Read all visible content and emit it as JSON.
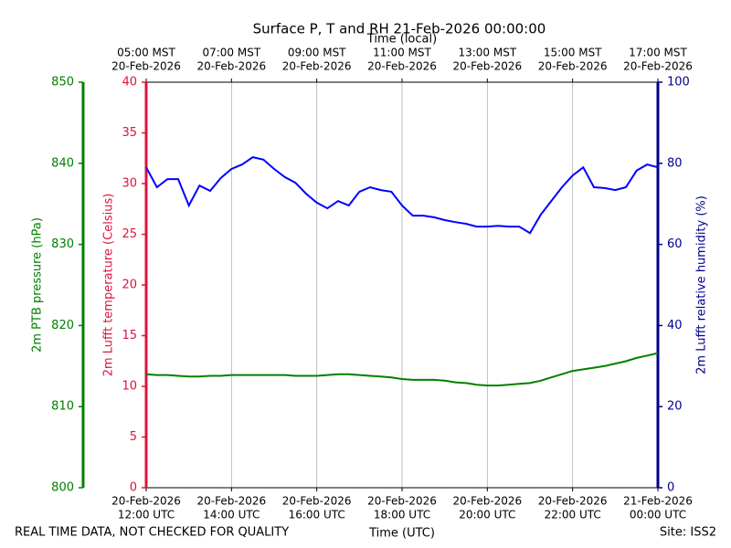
{
  "chart_data": {
    "type": "line",
    "title": "Surface P, T and RH 21-Feb-2026 00:00:00",
    "xlabel": "Time (UTC)",
    "x2label": "Time (local)",
    "footer_left": "REAL TIME DATA, NOT CHECKED FOR QUALITY",
    "footer_right": "Site: ISS2",
    "xlim": [
      "2026-02-20T12:00",
      "2026-02-21T00:00"
    ],
    "xticks": [
      {
        "value": "2026-02-20T12:00",
        "label": [
          "20-Feb-2026",
          "12:00 UTC"
        ]
      },
      {
        "value": "2026-02-20T14:00",
        "label": [
          "20-Feb-2026",
          "14:00 UTC"
        ]
      },
      {
        "value": "2026-02-20T16:00",
        "label": [
          "20-Feb-2026",
          "16:00 UTC"
        ]
      },
      {
        "value": "2026-02-20T18:00",
        "label": [
          "20-Feb-2026",
          "18:00 UTC"
        ]
      },
      {
        "value": "2026-02-20T20:00",
        "label": [
          "20-Feb-2026",
          "20:00 UTC"
        ]
      },
      {
        "value": "2026-02-20T22:00",
        "label": [
          "20-Feb-2026",
          "22:00 UTC"
        ]
      },
      {
        "value": "2026-02-21T00:00",
        "label": [
          "21-Feb-2026",
          "00:00 UTC"
        ]
      }
    ],
    "x2ticks": [
      {
        "value": "2026-02-20T12:00",
        "label": [
          "05:00 MST",
          "20-Feb-2026"
        ]
      },
      {
        "value": "2026-02-20T14:00",
        "label": [
          "07:00 MST",
          "20-Feb-2026"
        ]
      },
      {
        "value": "2026-02-20T16:00",
        "label": [
          "09:00 MST",
          "20-Feb-2026"
        ]
      },
      {
        "value": "2026-02-20T18:00",
        "label": [
          "11:00 MST",
          "20-Feb-2026"
        ]
      },
      {
        "value": "2026-02-20T20:00",
        "label": [
          "13:00 MST",
          "20-Feb-2026"
        ]
      },
      {
        "value": "2026-02-20T22:00",
        "label": [
          "15:00 MST",
          "20-Feb-2026"
        ]
      },
      {
        "value": "2026-02-21T00:00",
        "label": [
          "17:00 MST",
          "20-Feb-2026"
        ]
      }
    ],
    "grid": true,
    "ylabel": "2m PTB pressure (hPa)",
    "ycolor": "#008000",
    "ylim": [
      800,
      850
    ],
    "yticks": [
      800,
      810,
      820,
      830,
      840,
      850
    ],
    "y2label": "2m Lufft temperature (Celsius)",
    "y2color": "#dc143c",
    "y2lim": [
      0,
      40
    ],
    "y2ticks": [
      0,
      5,
      10,
      15,
      20,
      25,
      30,
      35,
      40
    ],
    "y3label": "2m Lufft relative humidity (%)",
    "y3color": "#00008b",
    "y3lim": [
      0,
      100
    ],
    "y3ticks": [
      0,
      20,
      40,
      60,
      80,
      100
    ],
    "x": [
      "2026-02-20T12:00",
      "2026-02-20T12:15",
      "2026-02-20T12:30",
      "2026-02-20T12:45",
      "2026-02-20T13:00",
      "2026-02-20T13:15",
      "2026-02-20T13:30",
      "2026-02-20T13:45",
      "2026-02-20T14:00",
      "2026-02-20T14:15",
      "2026-02-20T14:30",
      "2026-02-20T14:45",
      "2026-02-20T15:00",
      "2026-02-20T15:15",
      "2026-02-20T15:30",
      "2026-02-20T15:45",
      "2026-02-20T16:00",
      "2026-02-20T16:15",
      "2026-02-20T16:30",
      "2026-02-20T16:45",
      "2026-02-20T17:00",
      "2026-02-20T17:15",
      "2026-02-20T17:30",
      "2026-02-20T17:45",
      "2026-02-20T18:00",
      "2026-02-20T18:15",
      "2026-02-20T18:30",
      "2026-02-20T18:45",
      "2026-02-20T19:00",
      "2026-02-20T19:15",
      "2026-02-20T19:30",
      "2026-02-20T19:45",
      "2026-02-20T20:00",
      "2026-02-20T20:15",
      "2026-02-20T20:30",
      "2026-02-20T20:45",
      "2026-02-20T21:00",
      "2026-02-20T21:15",
      "2026-02-20T21:30",
      "2026-02-20T21:45",
      "2026-02-20T22:00",
      "2026-02-20T22:15",
      "2026-02-20T22:30",
      "2026-02-20T22:45",
      "2026-02-20T23:00",
      "2026-02-20T23:15",
      "2026-02-20T23:30",
      "2026-02-20T23:45",
      "2026-02-21T00:00"
    ],
    "series": [
      {
        "color": "#0000ff",
        "axis": "y3",
        "values": [
          79.0,
          74.1,
          76.1,
          76.1,
          69.6,
          74.5,
          73.2,
          76.4,
          78.6,
          79.7,
          81.5,
          80.9,
          78.6,
          76.6,
          75.2,
          72.5,
          70.3,
          68.9,
          70.7,
          69.6,
          73.0,
          74.1,
          73.4,
          73.0,
          69.6,
          67.1,
          67.1,
          66.7,
          66.0,
          65.5,
          65.1,
          64.4,
          64.4,
          64.6,
          64.4,
          64.4,
          62.8,
          67.3,
          70.7,
          74.1,
          77.0,
          79.0,
          74.1,
          73.9,
          73.4,
          74.1,
          78.2,
          79.7,
          79.0
        ]
      },
      {
        "color": "#008000",
        "axis": "y",
        "values": [
          814.0,
          813.9,
          813.9,
          813.8,
          813.7,
          813.7,
          813.8,
          813.8,
          813.9,
          813.9,
          813.9,
          813.9,
          813.9,
          813.9,
          813.8,
          813.8,
          813.8,
          813.9,
          814.0,
          814.0,
          813.9,
          813.8,
          813.7,
          813.6,
          813.4,
          813.3,
          813.3,
          813.3,
          813.2,
          813.0,
          812.9,
          812.7,
          812.6,
          812.6,
          812.7,
          812.8,
          812.9,
          813.2,
          813.6,
          814.0,
          814.4,
          814.6,
          814.8,
          815.0,
          815.3,
          815.6,
          816.0,
          816.3,
          816.6
        ]
      }
    ]
  }
}
